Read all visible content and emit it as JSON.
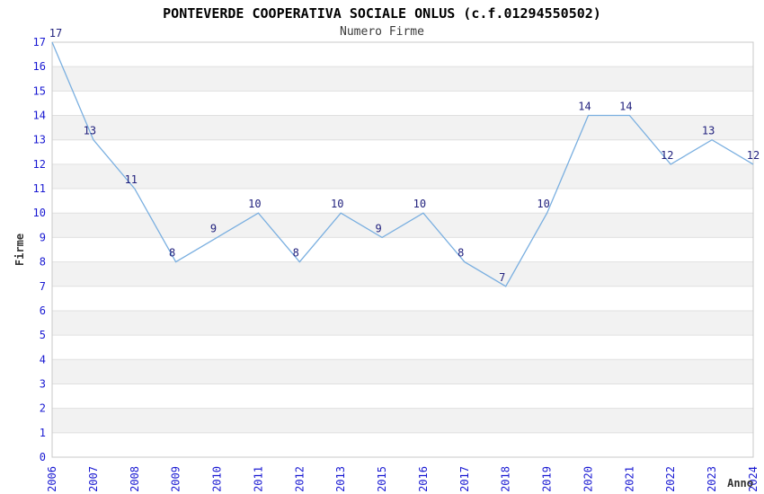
{
  "page": {
    "title": "PONTEVERDE COOPERATIVA SOCIALE ONLUS (c.f.01294550502)",
    "subtitle": "Numero Firme"
  },
  "chart_data": {
    "type": "line",
    "title": "PONTEVERDE COOPERATIVA SOCIALE ONLUS (c.f.01294550502)",
    "subtitle": "Numero Firme",
    "xlabel": "Anno",
    "ylabel": "Firme",
    "categories": [
      "2006",
      "2007",
      "2008",
      "2009",
      "2010",
      "2011",
      "2012",
      "2013",
      "2015",
      "2016",
      "2017",
      "2018",
      "2019",
      "2020",
      "2021",
      "2022",
      "2023",
      "2024"
    ],
    "series": [
      {
        "name": "Numero Firme",
        "values": [
          17,
          13,
          11,
          8,
          9,
          10,
          8,
          10,
          9,
          10,
          8,
          7,
          10,
          14,
          14,
          12,
          13,
          12
        ]
      }
    ],
    "ylim": [
      0,
      17
    ],
    "ytick_step": 1,
    "point_labels": true,
    "legend": "none",
    "grid": "horizontal-lines-with-alternating-bands",
    "colors": {
      "line": "#7aafe0",
      "tick_label": "#1919d2",
      "value_label": "#22227e",
      "band": "#f2f2f2",
      "grid_line": "#e0e0e0",
      "plot_border": "#c9c9c9",
      "title": "#000000",
      "subtitle": "#3a3a3a",
      "axis_label": "#333333",
      "background": "#ffffff"
    }
  }
}
